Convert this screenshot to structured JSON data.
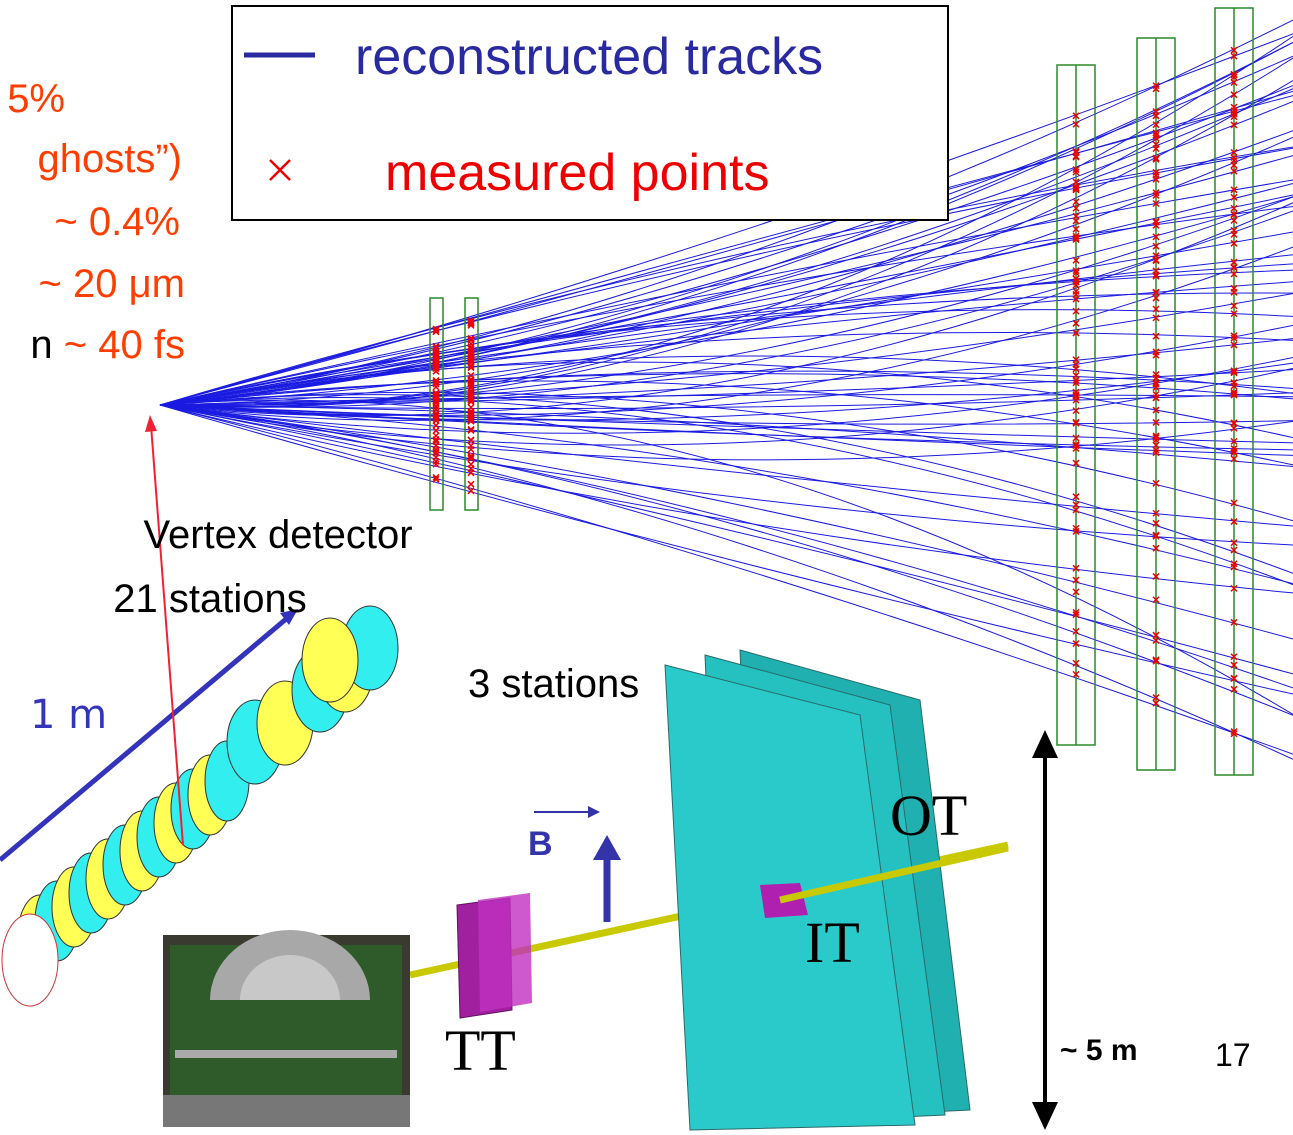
{
  "legend": {
    "items": [
      {
        "label": "reconstructed tracks"
      },
      {
        "label": "measured points"
      }
    ]
  },
  "performance_notes": [
    "5%",
    "ghosts”)",
    "~ 0.4%",
    "~ 20 μm",
    "n",
    "~ 40 fs"
  ],
  "labels": {
    "vertex_detector": "Vertex detector",
    "vertex_stations": "21 stations",
    "length": "1 m",
    "tracking_stations": "3 stations",
    "outer_tracker": "OT",
    "field": "B",
    "inner_tracker": "IT",
    "trigger_tracker": "TT",
    "height": "~ 5 m"
  },
  "page_number": "17"
}
